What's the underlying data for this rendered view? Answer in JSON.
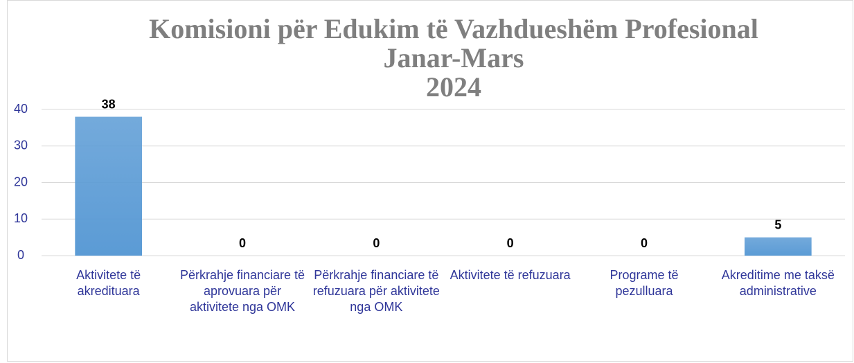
{
  "chart_data": {
    "type": "bar",
    "title": [
      "Komisioni për Edukim të Vazhdueshëm Profesional",
      "Janar-Mars",
      "2024"
    ],
    "categories": [
      "Aktivitete të akredituara",
      "Përkrahje financiare të aprovuara për aktivitete nga OMK",
      "Përkrahje financiare të refuzuara për aktivitete nga OMK",
      "Aktivitete të refuzuara",
      "Programe të pezulluara",
      "Akreditime me taksë administrative"
    ],
    "values": [
      38,
      0,
      0,
      0,
      0,
      5
    ],
    "color": "#5b9bd5",
    "ylim": [
      0,
      40
    ],
    "yticks": [
      0,
      10,
      20,
      30,
      40
    ],
    "grid": true
  }
}
